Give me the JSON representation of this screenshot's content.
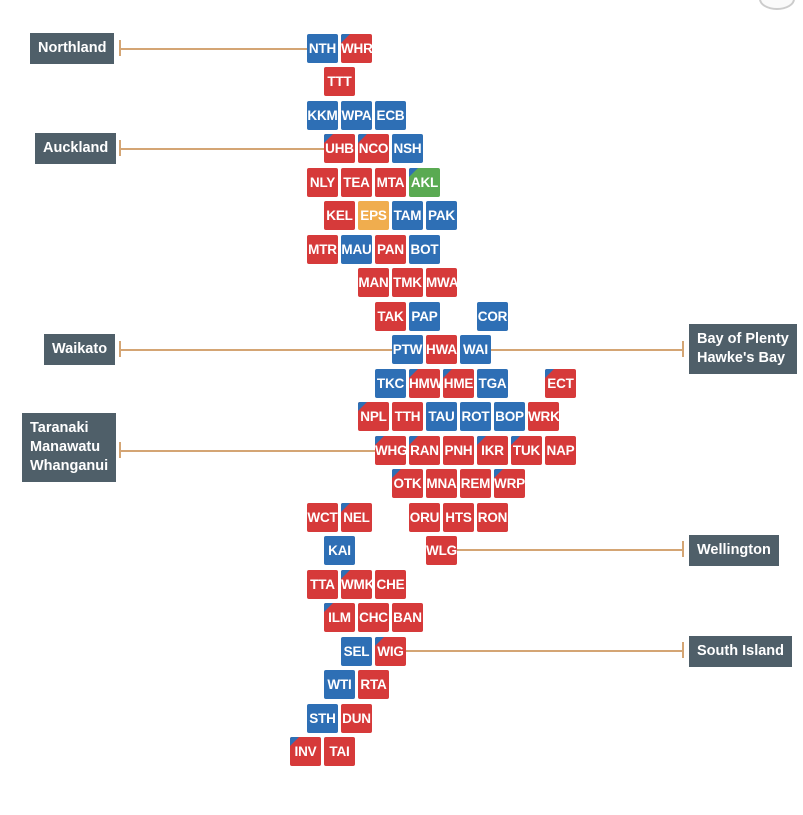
{
  "colors": {
    "blue": "#2e6fb5",
    "red": "#d63a3a",
    "green": "#5aaa52",
    "orange": "#f0ad4e",
    "label_bg": "#4f5f69",
    "connector": "#d4a574"
  },
  "regions": [
    {
      "id": "northland",
      "lines": [
        "Northland"
      ]
    },
    {
      "id": "auckland",
      "lines": [
        "Auckland"
      ]
    },
    {
      "id": "waikato",
      "lines": [
        "Waikato"
      ]
    },
    {
      "id": "bop",
      "lines": [
        "Bay of Plenty",
        "Hawke's Bay"
      ]
    },
    {
      "id": "taranaki",
      "lines": [
        "Taranaki",
        "Manawatu",
        "Whanganui"
      ]
    },
    {
      "id": "wellington",
      "lines": [
        "Wellington"
      ]
    },
    {
      "id": "south",
      "lines": [
        "South Island"
      ]
    }
  ],
  "electorates": [
    {
      "code": "NTH",
      "color": "blue",
      "corner": null
    },
    {
      "code": "WHR",
      "color": "red",
      "corner": "blue"
    },
    {
      "code": "TTT",
      "color": "red",
      "corner": null
    },
    {
      "code": "KKM",
      "color": "blue",
      "corner": null
    },
    {
      "code": "WPA",
      "color": "blue",
      "corner": null
    },
    {
      "code": "ECB",
      "color": "blue",
      "corner": null
    },
    {
      "code": "UHB",
      "color": "red",
      "corner": "blue"
    },
    {
      "code": "NCO",
      "color": "red",
      "corner": "blue"
    },
    {
      "code": "NSH",
      "color": "blue",
      "corner": null
    },
    {
      "code": "NLY",
      "color": "red",
      "corner": null
    },
    {
      "code": "TEA",
      "color": "red",
      "corner": null
    },
    {
      "code": "MTA",
      "color": "red",
      "corner": null
    },
    {
      "code": "AKL",
      "color": "green",
      "corner": "blue"
    },
    {
      "code": "KEL",
      "color": "red",
      "corner": null
    },
    {
      "code": "EPS",
      "color": "orange",
      "corner": null
    },
    {
      "code": "TAM",
      "color": "blue",
      "corner": null
    },
    {
      "code": "PAK",
      "color": "blue",
      "corner": null
    },
    {
      "code": "MTR",
      "color": "red",
      "corner": null
    },
    {
      "code": "MAU",
      "color": "blue",
      "corner": null
    },
    {
      "code": "PAN",
      "color": "red",
      "corner": null
    },
    {
      "code": "BOT",
      "color": "blue",
      "corner": null
    },
    {
      "code": "MAN",
      "color": "red",
      "corner": null
    },
    {
      "code": "TMK",
      "color": "red",
      "corner": null
    },
    {
      "code": "MWA",
      "color": "red",
      "corner": null
    },
    {
      "code": "TAK",
      "color": "red",
      "corner": null
    },
    {
      "code": "PAP",
      "color": "blue",
      "corner": null
    },
    {
      "code": "COR",
      "color": "blue",
      "corner": null
    },
    {
      "code": "PTW",
      "color": "blue",
      "corner": null
    },
    {
      "code": "HWA",
      "color": "red",
      "corner": null
    },
    {
      "code": "WAI",
      "color": "blue",
      "corner": null
    },
    {
      "code": "TKC",
      "color": "blue",
      "corner": null
    },
    {
      "code": "HMW",
      "color": "red",
      "corner": "blue"
    },
    {
      "code": "HME",
      "color": "red",
      "corner": "blue"
    },
    {
      "code": "TGA",
      "color": "blue",
      "corner": null
    },
    {
      "code": "ECT",
      "color": "red",
      "corner": "blue"
    },
    {
      "code": "NPL",
      "color": "red",
      "corner": "blue"
    },
    {
      "code": "TTH",
      "color": "red",
      "corner": null
    },
    {
      "code": "TAU",
      "color": "blue",
      "corner": null
    },
    {
      "code": "ROT",
      "color": "blue",
      "corner": null
    },
    {
      "code": "BOP",
      "color": "blue",
      "corner": null
    },
    {
      "code": "WRK",
      "color": "red",
      "corner": null
    },
    {
      "code": "WHG",
      "color": "red",
      "corner": "blue"
    },
    {
      "code": "RAN",
      "color": "red",
      "corner": "blue"
    },
    {
      "code": "PNH",
      "color": "red",
      "corner": null
    },
    {
      "code": "IKR",
      "color": "red",
      "corner": "blue"
    },
    {
      "code": "TUK",
      "color": "red",
      "corner": "blue"
    },
    {
      "code": "NAP",
      "color": "red",
      "corner": null
    },
    {
      "code": "OTK",
      "color": "red",
      "corner": "blue"
    },
    {
      "code": "MNA",
      "color": "red",
      "corner": null
    },
    {
      "code": "REM",
      "color": "red",
      "corner": null
    },
    {
      "code": "WRP",
      "color": "red",
      "corner": "blue"
    },
    {
      "code": "WCT",
      "color": "red",
      "corner": null
    },
    {
      "code": "NEL",
      "color": "red",
      "corner": "blue"
    },
    {
      "code": "ORU",
      "color": "red",
      "corner": null
    },
    {
      "code": "HTS",
      "color": "red",
      "corner": null
    },
    {
      "code": "RON",
      "color": "red",
      "corner": null
    },
    {
      "code": "KAI",
      "color": "blue",
      "corner": null
    },
    {
      "code": "WLG",
      "color": "red",
      "corner": null
    },
    {
      "code": "TTA",
      "color": "red",
      "corner": null
    },
    {
      "code": "WMK",
      "color": "red",
      "corner": "blue"
    },
    {
      "code": "CHE",
      "color": "red",
      "corner": null
    },
    {
      "code": "ILM",
      "color": "red",
      "corner": "blue"
    },
    {
      "code": "CHC",
      "color": "red",
      "corner": null
    },
    {
      "code": "BAN",
      "color": "red",
      "corner": null
    },
    {
      "code": "SEL",
      "color": "blue",
      "corner": null
    },
    {
      "code": "WIG",
      "color": "red",
      "corner": "blue"
    },
    {
      "code": "WTI",
      "color": "blue",
      "corner": null
    },
    {
      "code": "RTA",
      "color": "red",
      "corner": null
    },
    {
      "code": "STH",
      "color": "blue",
      "corner": null
    },
    {
      "code": "DUN",
      "color": "red",
      "corner": null
    },
    {
      "code": "INV",
      "color": "red",
      "corner": "blue"
    },
    {
      "code": "TAI",
      "color": "red",
      "corner": null
    }
  ]
}
